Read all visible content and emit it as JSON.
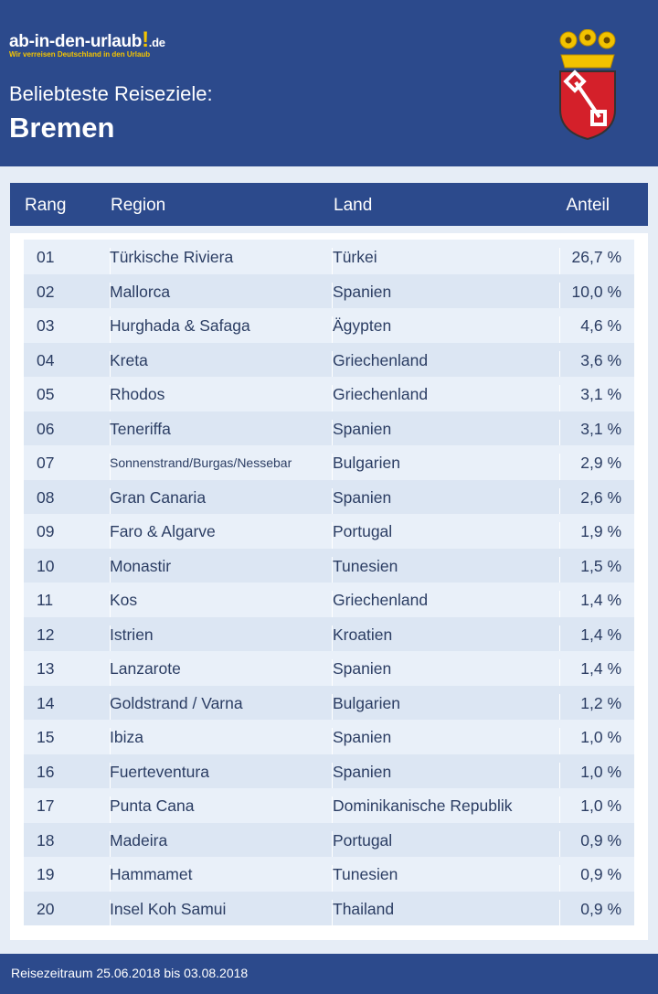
{
  "logo": {
    "name": "ab-in-den-urlaub",
    "mark": "!",
    "tld": ".de",
    "tagline": "Wir verreisen Deutschland in den Urlaub"
  },
  "header": {
    "subtitle": "Beliebteste Reiseziele:",
    "title": "Bremen"
  },
  "table": {
    "columns": [
      "Rang",
      "Region",
      "Land",
      "Anteil"
    ],
    "rows": [
      [
        "01",
        "Türkische Riviera",
        "Türkei",
        "26,7 %"
      ],
      [
        "02",
        "Mallorca",
        "Spanien",
        "10,0 %"
      ],
      [
        "03",
        "Hurghada & Safaga",
        "Ägypten",
        "4,6 %"
      ],
      [
        "04",
        "Kreta",
        "Griechenland",
        "3,6 %"
      ],
      [
        "05",
        "Rhodos",
        "Griechenland",
        "3,1 %"
      ],
      [
        "06",
        "Teneriffa",
        "Spanien",
        "3,1 %"
      ],
      [
        "07",
        "Sonnenstrand/Burgas/Nessebar",
        "Bulgarien",
        "2,9 %"
      ],
      [
        "08",
        "Gran Canaria",
        "Spanien",
        "2,6 %"
      ],
      [
        "09",
        "Faro & Algarve",
        "Portugal",
        "1,9 %"
      ],
      [
        "10",
        "Monastir",
        "Tunesien",
        "1,5 %"
      ],
      [
        "11",
        "Kos",
        "Griechenland",
        "1,4 %"
      ],
      [
        "12",
        "Istrien",
        "Kroatien",
        "1,4 %"
      ],
      [
        "13",
        "Lanzarote",
        "Spanien",
        "1,4 %"
      ],
      [
        "14",
        "Goldstrand / Varna",
        "Bulgarien",
        "1,2 %"
      ],
      [
        "15",
        "Ibiza",
        "Spanien",
        "1,0 %"
      ],
      [
        "16",
        "Fuerteventura",
        "Spanien",
        "1,0 %"
      ],
      [
        "17",
        "Punta Cana",
        "Dominikanische Republik",
        "1,0 %"
      ],
      [
        "18",
        "Madeira",
        "Portugal",
        "0,9 %"
      ],
      [
        "19",
        "Hammamet",
        "Tunesien",
        "0,9 %"
      ],
      [
        "20",
        "Insel Koh Samui",
        "Thailand",
        "0,9 %"
      ]
    ]
  },
  "footer": {
    "text": "Reisezeitraum 25.06.2018 bis 03.08.2018"
  }
}
